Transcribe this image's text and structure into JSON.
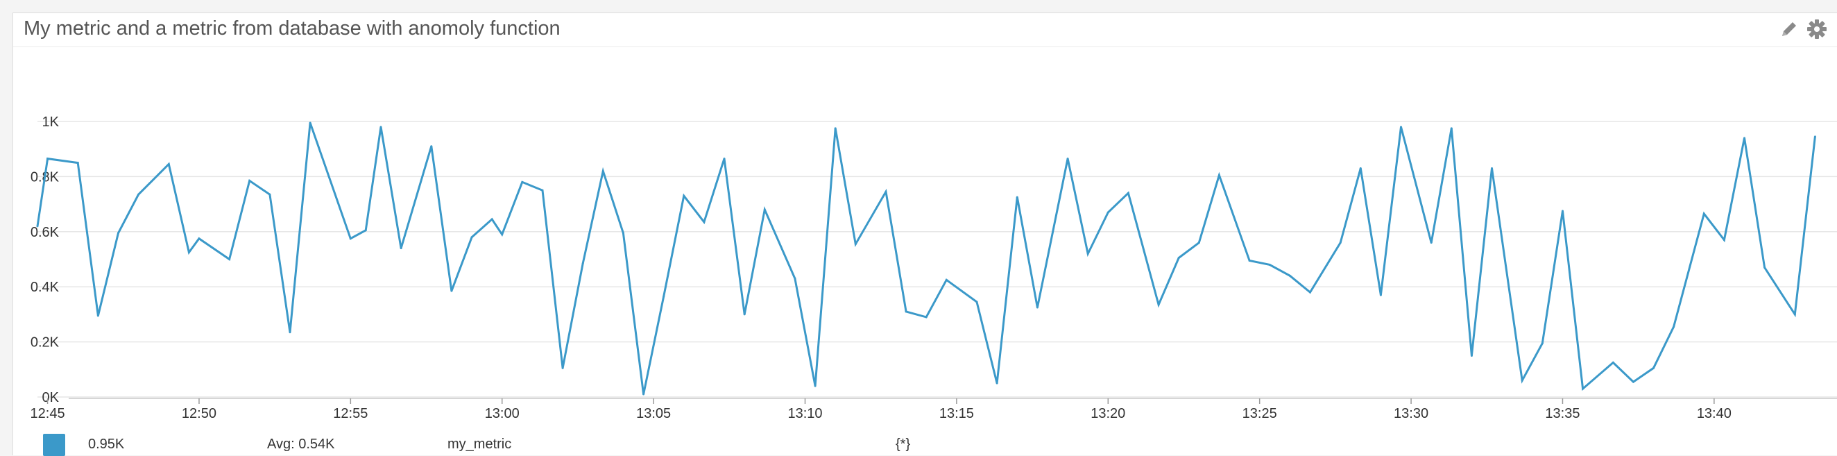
{
  "panel": {
    "title": "My metric and a metric from database with anomoly function",
    "icons": [
      "pencil-icon",
      "gear-icon"
    ],
    "icon_color": "#8a8a8a"
  },
  "chart_data": {
    "type": "line",
    "title": "My metric and a metric from database with anomoly function",
    "xlabel": "",
    "ylabel": "",
    "x_ticks": [
      "12:45",
      "12:50",
      "12:55",
      "13:00",
      "13:05",
      "13:10",
      "13:15",
      "13:20",
      "13:25",
      "13:30",
      "13:35",
      "13:40"
    ],
    "y_ticks": [
      "0K",
      "0.2K",
      "0.4K",
      "0.6K",
      "0.8K",
      "1K"
    ],
    "ylim": [
      0,
      1000
    ],
    "xlim": [
      "12:44:40",
      "13:43:40"
    ],
    "grid": true,
    "series": [
      {
        "name": "my_metric",
        "color": "#3b99c9",
        "x": [
          "12:44:40",
          "12:45:00",
          "12:46:00",
          "12:46:40",
          "12:47:20",
          "12:48:00",
          "12:49:00",
          "12:49:40",
          "12:50:00",
          "12:51:00",
          "12:51:40",
          "12:52:20",
          "12:53:00",
          "12:53:40",
          "12:55:00",
          "12:55:30",
          "12:56:00",
          "12:56:40",
          "12:57:40",
          "12:58:20",
          "12:59:00",
          "12:59:40",
          "13:00:00",
          "13:00:40",
          "13:01:20",
          "13:02:00",
          "13:02:40",
          "13:03:20",
          "13:04:00",
          "13:04:40",
          "13:05:20",
          "13:06:00",
          "13:06:40",
          "13:07:20",
          "13:08:00",
          "13:08:40",
          "13:09:40",
          "13:10:20",
          "13:11:00",
          "13:11:40",
          "13:12:40",
          "13:13:20",
          "13:14:00",
          "13:14:40",
          "13:15:40",
          "13:16:20",
          "13:17:00",
          "13:17:40",
          "13:18:40",
          "13:19:20",
          "13:20:00",
          "13:20:40",
          "13:21:40",
          "13:22:20",
          "13:23:00",
          "13:23:40",
          "13:24:40",
          "13:25:20",
          "13:26:00",
          "13:26:40",
          "13:27:40",
          "13:28:20",
          "13:29:00",
          "13:29:40",
          "13:30:40",
          "13:31:20",
          "13:32:00",
          "13:32:40",
          "13:33:40",
          "13:34:20",
          "13:35:00",
          "13:35:40",
          "13:36:40",
          "13:37:20",
          "13:38:00",
          "13:38:40",
          "13:39:40",
          "13:40:20",
          "13:41:00",
          "13:41:40",
          "13:42:40",
          "13:43:20"
        ],
        "values": [
          620,
          865,
          850,
          295,
          595,
          735,
          845,
          525,
          575,
          500,
          785,
          735,
          235,
          995,
          575,
          605,
          980,
          540,
          910,
          385,
          580,
          645,
          590,
          780,
          750,
          105,
          485,
          820,
          595,
          10,
          365,
          730,
          635,
          865,
          300,
          680,
          430,
          40,
          975,
          555,
          745,
          310,
          290,
          425,
          345,
          50,
          725,
          325,
          865,
          520,
          670,
          740,
          335,
          505,
          560,
          805,
          495,
          480,
          440,
          380,
          560,
          830,
          370,
          980,
          560,
          975,
          150,
          830,
          60,
          195,
          675,
          30,
          125,
          55,
          105,
          255,
          665,
          570,
          940,
          470,
          300,
          945
        ]
      }
    ]
  },
  "legend": {
    "swatch_color": "#3b99c9",
    "value": "0.95K",
    "avg": "Avg: 0.54K",
    "metric": "my_metric",
    "scope": "{*}"
  }
}
